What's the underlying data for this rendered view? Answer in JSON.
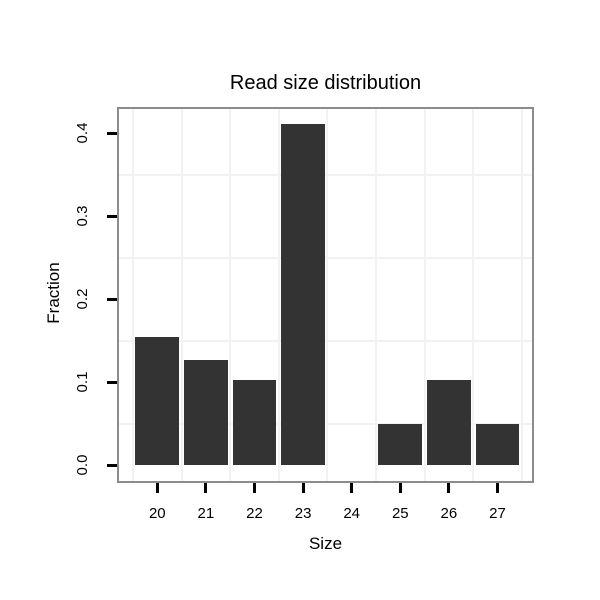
{
  "chart_data": {
    "type": "bar",
    "title": "Read size distribution",
    "xlabel": "Size",
    "ylabel": "Fraction",
    "categories": [
      "20",
      "21",
      "22",
      "23",
      "24",
      "25",
      "26",
      "27"
    ],
    "values": [
      0.154,
      0.127,
      0.102,
      0.411,
      0,
      0.05,
      0.102,
      0.05
    ],
    "y_ticks": [
      {
        "label": "0.0",
        "value": 0.0
      },
      {
        "label": "0.1",
        "value": 0.1
      },
      {
        "label": "0.2",
        "value": 0.2
      },
      {
        "label": "0.3",
        "value": 0.3
      },
      {
        "label": "0.4",
        "value": 0.4
      }
    ],
    "y_minor_gridlines": [
      0.05,
      0.15,
      0.25,
      0.35
    ],
    "ylim": [
      -0.022,
      0.432
    ],
    "legend": "none",
    "grid": "minor-only",
    "colors": {
      "bar_fill": "#333333",
      "gridline": "#f2f2f2",
      "panel_border": "#8c8c8c",
      "tick": "#000000",
      "text": "#000000",
      "background": "#ffffff"
    }
  }
}
